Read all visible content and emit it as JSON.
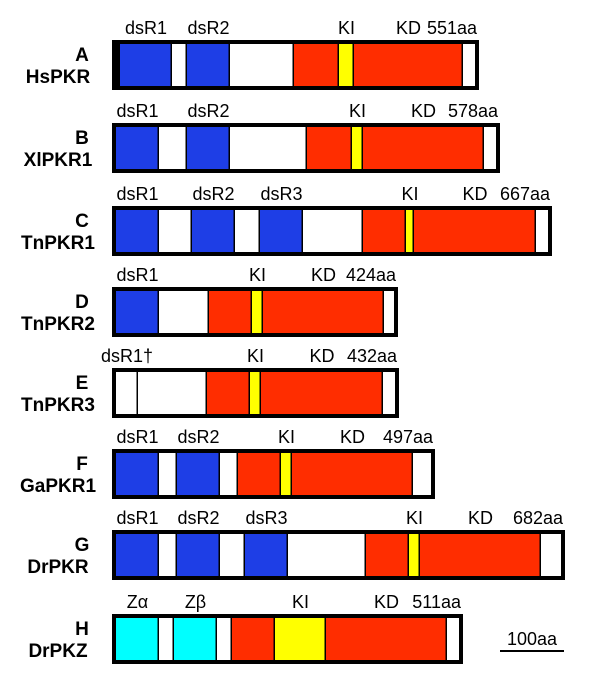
{
  "colors": {
    "dsrbd": "#1e3ee6",
    "kinase": "#ff2d00",
    "kinase_insert": "#ffff00",
    "z_domain": "#00ffff",
    "linker": "#ffffff",
    "outline": "#000000"
  },
  "proteins": [
    {
      "letter": "A",
      "name": "HsPKR",
      "length_label": "551aa",
      "segments": [
        {
          "t": "k",
          "len": 4
        },
        {
          "t": "b",
          "len": 52
        },
        {
          "t": "w",
          "len": 15
        },
        {
          "t": "b",
          "len": 43
        },
        {
          "t": "w",
          "len": 64
        },
        {
          "t": "r",
          "len": 45
        },
        {
          "t": "y",
          "len": 15
        },
        {
          "t": "r",
          "len": 109
        },
        {
          "t": "w",
          "len": 12
        }
      ],
      "labels": [
        {
          "text": "dsR1",
          "seg": 1
        },
        {
          "text": "dsR2",
          "seg": 3
        },
        {
          "text": "KI",
          "seg": 6
        },
        {
          "text": "KD",
          "seg": 7
        }
      ]
    },
    {
      "letter": "B",
      "name": "XlPKR1",
      "length_label": "578aa",
      "segments": [
        {
          "t": "b",
          "len": 43
        },
        {
          "t": "w",
          "len": 28
        },
        {
          "t": "b",
          "len": 43
        },
        {
          "t": "w",
          "len": 77
        },
        {
          "t": "r",
          "len": 45
        },
        {
          "t": "y",
          "len": 11
        },
        {
          "t": "r",
          "len": 121
        },
        {
          "t": "w",
          "len": 12
        }
      ],
      "labels": [
        {
          "text": "dsR1",
          "seg": 0
        },
        {
          "text": "dsR2",
          "seg": 2
        },
        {
          "text": "KI",
          "seg": 5
        },
        {
          "text": "KD",
          "seg": 6
        }
      ]
    },
    {
      "letter": "C",
      "name": "TnPKR1",
      "length_label": "667aa",
      "segments": [
        {
          "t": "b",
          "len": 43
        },
        {
          "t": "w",
          "len": 33
        },
        {
          "t": "b",
          "len": 43
        },
        {
          "t": "w",
          "len": 25
        },
        {
          "t": "b",
          "len": 43
        },
        {
          "t": "w",
          "len": 60
        },
        {
          "t": "r",
          "len": 43
        },
        {
          "t": "y",
          "len": 8
        },
        {
          "t": "r",
          "len": 122
        },
        {
          "t": "w",
          "len": 12
        }
      ],
      "labels": [
        {
          "text": "dsR1",
          "seg": 0
        },
        {
          "text": "dsR2",
          "seg": 2
        },
        {
          "text": "dsR3",
          "seg": 4
        },
        {
          "text": "KI",
          "seg": 7
        },
        {
          "text": "KD",
          "seg": 8
        }
      ]
    },
    {
      "letter": "D",
      "name": "TnPKR2",
      "length_label": "424aa",
      "segments": [
        {
          "t": "b",
          "len": 43
        },
        {
          "t": "w",
          "len": 50
        },
        {
          "t": "r",
          "len": 43
        },
        {
          "t": "y",
          "len": 11
        },
        {
          "t": "r",
          "len": 121
        },
        {
          "t": "w",
          "len": 10
        }
      ],
      "labels": [
        {
          "text": "dsR1",
          "seg": 0
        },
        {
          "text": "KI",
          "seg": 3
        },
        {
          "text": "KD",
          "seg": 4
        }
      ]
    },
    {
      "letter": "E",
      "name": "TnPKR3",
      "length_label": "432aa",
      "segments": [
        {
          "t": "w",
          "len": 22
        },
        {
          "t": "w",
          "len": 69
        },
        {
          "t": "r",
          "len": 43
        },
        {
          "t": "y",
          "len": 11
        },
        {
          "t": "r",
          "len": 122
        },
        {
          "t": "w",
          "len": 12
        }
      ],
      "labels": [
        {
          "text": "dsR1†",
          "seg": 0
        },
        {
          "text": "KI",
          "seg": 3
        },
        {
          "text": "KD",
          "seg": 4
        }
      ]
    },
    {
      "letter": "F",
      "name": "GaPKR1",
      "length_label": "497aa",
      "segments": [
        {
          "t": "b",
          "len": 43
        },
        {
          "t": "w",
          "len": 18
        },
        {
          "t": "b",
          "len": 43
        },
        {
          "t": "w",
          "len": 18
        },
        {
          "t": "r",
          "len": 43
        },
        {
          "t": "y",
          "len": 11
        },
        {
          "t": "r",
          "len": 121
        },
        {
          "t": "w",
          "len": 18
        }
      ],
      "labels": [
        {
          "text": "dsR1",
          "seg": 0
        },
        {
          "text": "dsR2",
          "seg": 2
        },
        {
          "text": "KI",
          "seg": 5
        },
        {
          "text": "KD",
          "seg": 6
        }
      ]
    },
    {
      "letter": "G",
      "name": "DrPKR",
      "length_label": "682aa",
      "segments": [
        {
          "t": "b",
          "len": 43
        },
        {
          "t": "w",
          "len": 18
        },
        {
          "t": "b",
          "len": 43
        },
        {
          "t": "w",
          "len": 25
        },
        {
          "t": "b",
          "len": 43
        },
        {
          "t": "w",
          "len": 78
        },
        {
          "t": "r",
          "len": 43
        },
        {
          "t": "y",
          "len": 11
        },
        {
          "t": "r",
          "len": 121
        },
        {
          "t": "w",
          "len": 20
        }
      ],
      "labels": [
        {
          "text": "dsR1",
          "seg": 0
        },
        {
          "text": "dsR2",
          "seg": 2
        },
        {
          "text": "dsR3",
          "seg": 4
        },
        {
          "text": "KI",
          "seg": 7
        },
        {
          "text": "KD",
          "seg": 8
        }
      ]
    },
    {
      "letter": "H",
      "name": "DrPKZ",
      "length_label": "511aa",
      "segments": [
        {
          "t": "c",
          "len": 43
        },
        {
          "t": "w",
          "len": 15
        },
        {
          "t": "c",
          "len": 43
        },
        {
          "t": "w",
          "len": 15
        },
        {
          "t": "r",
          "len": 43
        },
        {
          "t": "y",
          "len": 51
        },
        {
          "t": "r",
          "len": 121
        },
        {
          "t": "w",
          "len": 12
        }
      ],
      "labels": [
        {
          "text": "Zα",
          "seg": 0
        },
        {
          "text": "Zβ",
          "seg": 2
        },
        {
          "text": "KI",
          "seg": 5
        },
        {
          "text": "KD",
          "seg": 6
        }
      ]
    }
  ],
  "scale_bar": {
    "label": "100aa",
    "aa": 100
  }
}
